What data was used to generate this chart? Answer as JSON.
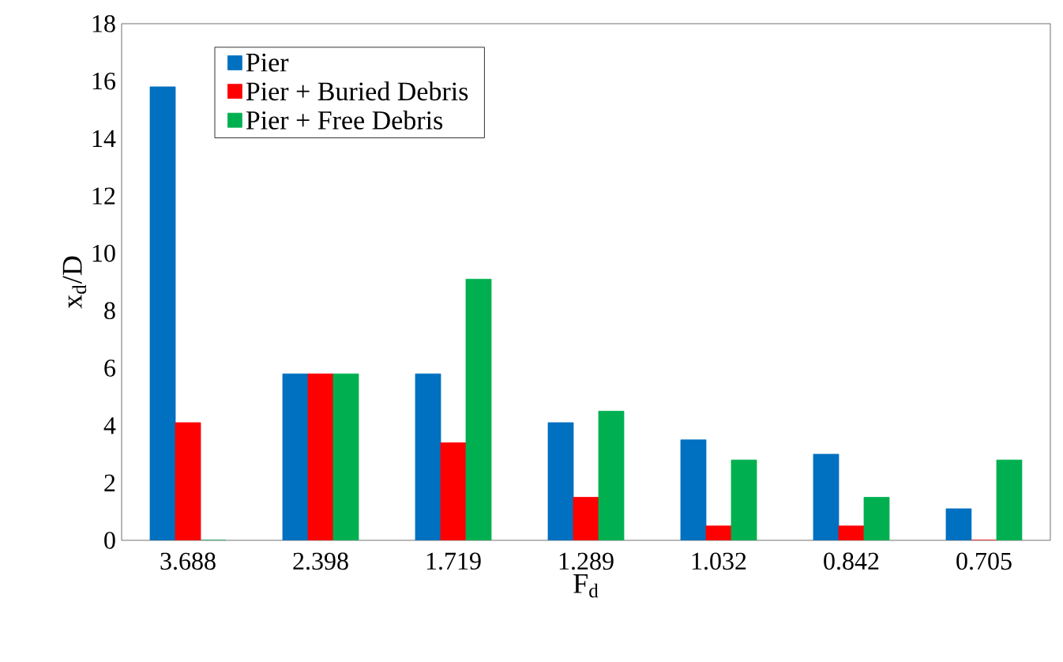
{
  "chart_data": {
    "type": "bar",
    "xlabel": "F$_{d}$",
    "ylabel": "x$_{d}$/D",
    "categories": [
      "3.688",
      "2.398",
      "1.719",
      "1.289",
      "1.032",
      "0.842",
      "0.705"
    ],
    "series": [
      {
        "name": "Pier",
        "color": "#0070c0",
        "values": [
          15.8,
          5.8,
          5.8,
          4.1,
          3.5,
          3.0,
          1.1
        ]
      },
      {
        "name": "Pier + Buried Debris",
        "color": "#ff0000",
        "values": [
          4.1,
          5.8,
          3.4,
          1.5,
          0.5,
          0.5,
          0
        ]
      },
      {
        "name": "Pier + Free Debris",
        "color": "#00b050",
        "values": [
          0,
          5.8,
          9.1,
          4.5,
          2.8,
          1.5,
          2.8
        ]
      }
    ],
    "ylim": [
      0,
      18
    ],
    "yticks": [
      0,
      2,
      4,
      6,
      8,
      10,
      12,
      14,
      16,
      18
    ],
    "grid": false,
    "legend": "top left"
  }
}
